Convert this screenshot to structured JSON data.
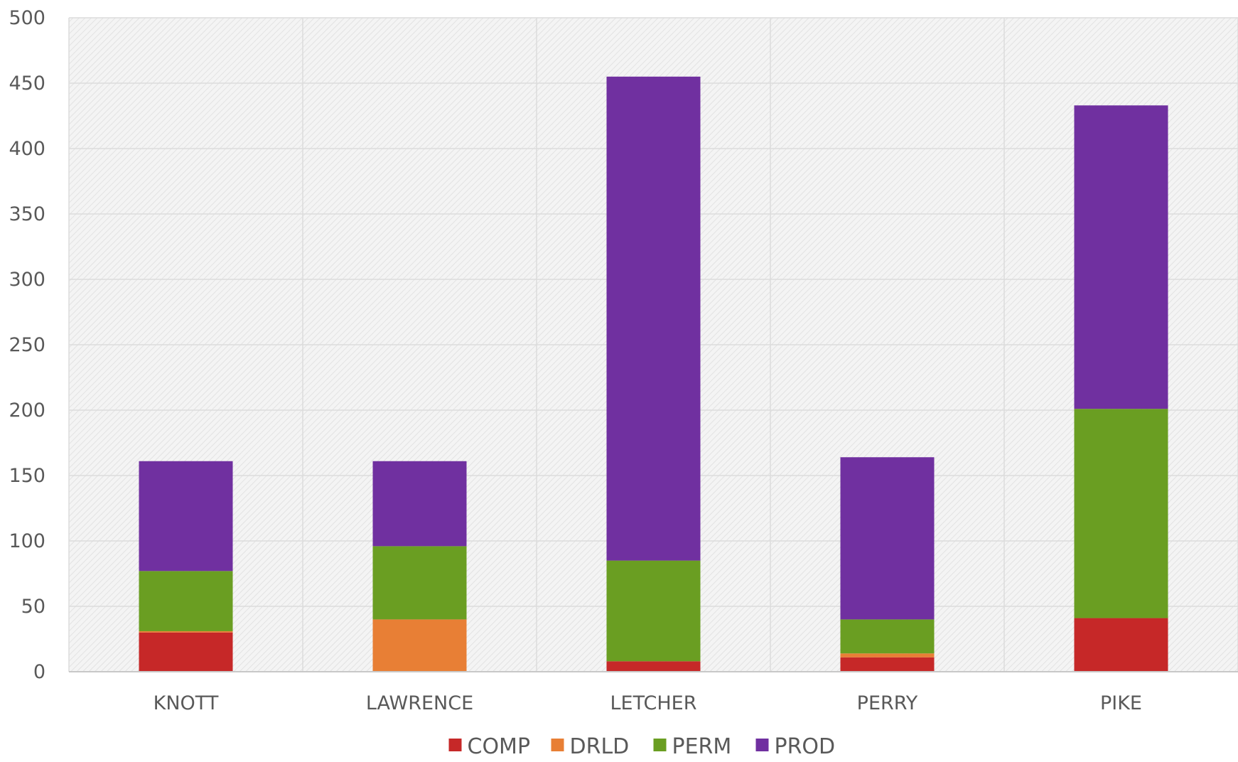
{
  "chart_data": {
    "type": "bar",
    "stacked": true,
    "categories": [
      "KNOTT",
      "LAWRENCE",
      "LETCHER",
      "PERRY",
      "PIKE"
    ],
    "series": [
      {
        "name": "COMP",
        "color": "#c62828",
        "values": [
          30,
          0,
          8,
          11,
          41
        ]
      },
      {
        "name": "DRLD",
        "color": "#e87f35",
        "values": [
          1,
          40,
          0,
          3,
          0
        ]
      },
      {
        "name": "PERM",
        "color": "#6a9e22",
        "values": [
          46,
          56,
          77,
          26,
          160
        ]
      },
      {
        "name": "PROD",
        "color": "#7030a0",
        "values": [
          84,
          65,
          370,
          124,
          232
        ]
      }
    ],
    "ylim": [
      0,
      500
    ],
    "yticks": [
      "0",
      "50",
      "100",
      "150",
      "200",
      "250",
      "300",
      "350",
      "400",
      "450",
      "500"
    ],
    "title": "",
    "xlabel": "",
    "ylabel": "",
    "grid": true,
    "legend_position": "bottom"
  }
}
